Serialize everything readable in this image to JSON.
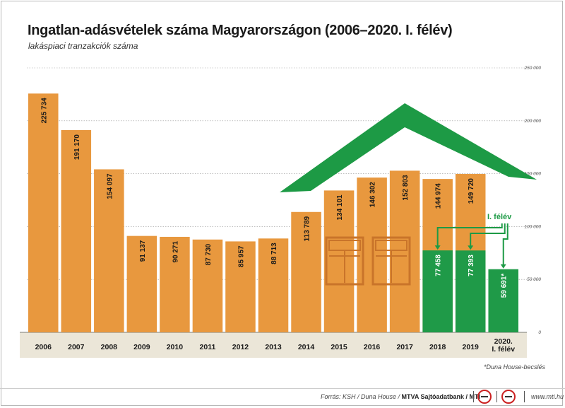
{
  "title": "Ingatlan-adásvételek száma Magyarországon (2006–2020. I. félév)",
  "subtitle": "lakáspiaci tranzakciók száma",
  "note": "*Duna House-becslés",
  "source_prefix": "Forrás: KSH / Duna House / ",
  "source_bold": "MTVA Sajtóadatbank / MTI",
  "site": "www.mti.hu",
  "colors": {
    "bar": "#e8983e",
    "half_year_bar": "#1f9a48",
    "roof": "#1d9a45",
    "window": "#e8983e",
    "axis_band": "#ebe6d8",
    "grid": "#999999"
  },
  "chart_data": {
    "type": "bar",
    "title": "Ingatlan-adásvételek száma Magyarországon (2006–2020. I. félév)",
    "subtitle": "lakáspiaci tranzakciók száma",
    "categories": [
      "2006",
      "2007",
      "2008",
      "2009",
      "2010",
      "2011",
      "2012",
      "2013",
      "2014",
      "2015",
      "2016",
      "2017",
      "2018",
      "2019",
      "2020.\nI. félév"
    ],
    "value_labels": [
      "225 734",
      "191 170",
      "154 097",
      "91 137",
      "90 271",
      "87 730",
      "85 957",
      "88 713",
      "113 789",
      "134 101",
      "146 302",
      "152 803",
      "144 974",
      "149 720",
      ""
    ],
    "values": [
      225734,
      191170,
      154097,
      91137,
      90271,
      87730,
      85957,
      88713,
      113789,
      134101,
      146302,
      152803,
      144974,
      149720,
      null
    ],
    "half_year_series": {
      "label": "I. félév",
      "categories": [
        "2018",
        "2019",
        "2020.\nI. félév"
      ],
      "values": [
        77458,
        77393,
        59691
      ],
      "value_labels": [
        "77 458",
        "77 393",
        "59 691*"
      ]
    },
    "ylim": [
      0,
      250000
    ],
    "yticks": [
      0,
      50000,
      100000,
      150000,
      200000,
      250000
    ],
    "ytick_labels": [
      "0",
      "50 000",
      "100 000",
      "150 000",
      "200 000",
      "250 000"
    ],
    "y_axis_side": "right",
    "grid": true
  }
}
